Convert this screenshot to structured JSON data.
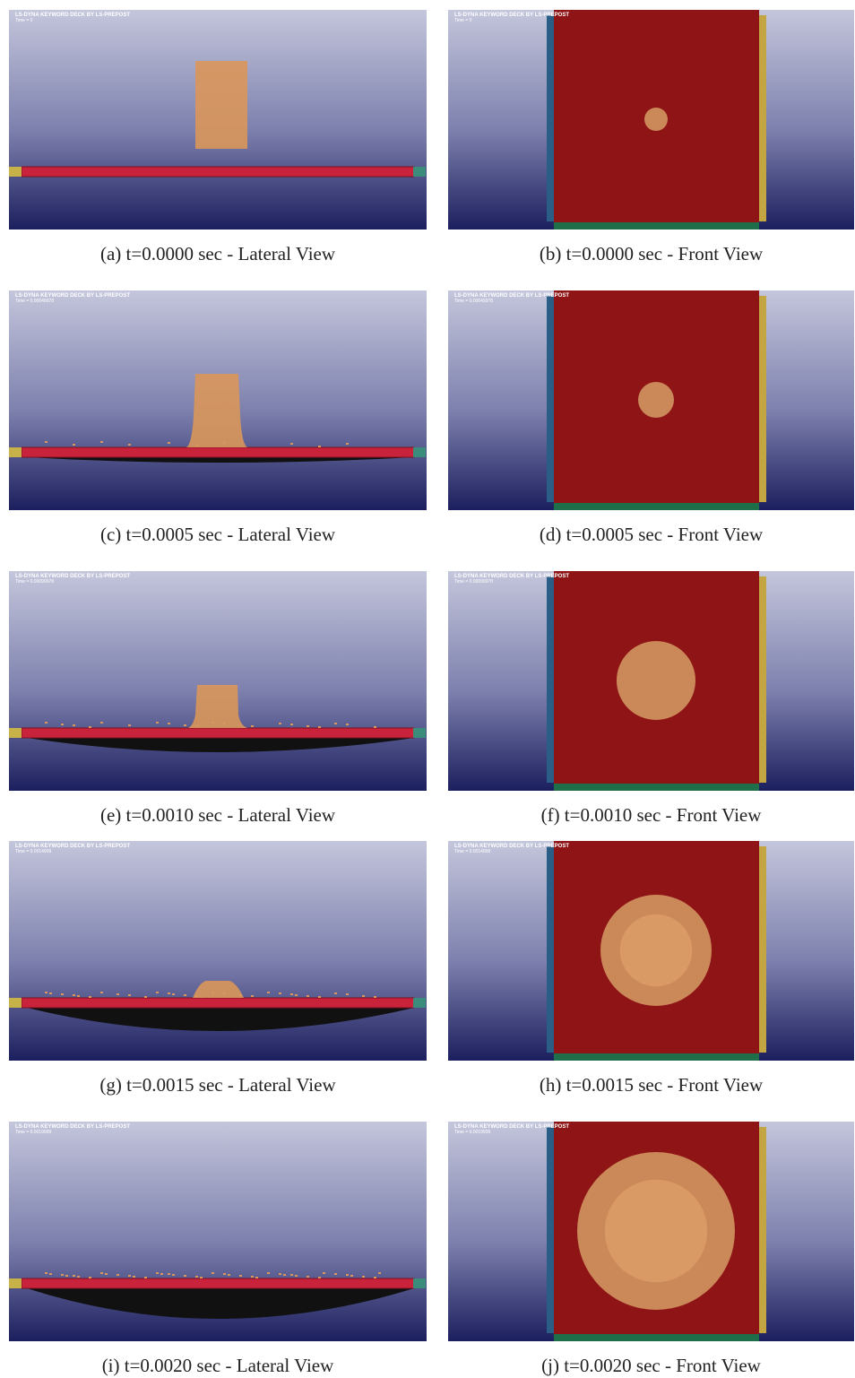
{
  "panels": [
    {
      "header": "LS-DYNA KEYWORD DECK BY LS-PREPOST",
      "time": "Time =       0",
      "caption": "(a) t=0.0000 sec - Lateral View"
    },
    {
      "header": "LS-DYNA KEYWORD DECK BY LS-PREPOST",
      "time": "Time =       0",
      "caption": "(b) t=0.0000 sec - Front View"
    },
    {
      "header": "LS-DYNA KEYWORD DECK BY LS-PREPOST",
      "time": "Time = 0.00049978",
      "caption": "(c) t=0.0005 sec - Lateral View"
    },
    {
      "header": "LS-DYNA KEYWORD DECK BY LS-PREPOST",
      "time": "Time = 0.00049978",
      "caption": "(d) t=0.0005 sec - Front View"
    },
    {
      "header": "LS-DYNA KEYWORD DECK BY LS-PREPOST",
      "time": "Time = 0.00099978",
      "caption": "(e) t=0.0010 sec - Lateral View"
    },
    {
      "header": "LS-DYNA KEYWORD DECK BY LS-PREPOST",
      "time": "Time = 0.00099978",
      "caption": "(f) t=0.0010 sec - Front View"
    },
    {
      "header": "LS-DYNA KEYWORD DECK BY LS-PREPOST",
      "time": "Time = 0.0014999",
      "caption": "(g) t=0.0015 sec - Lateral View"
    },
    {
      "header": "LS-DYNA KEYWORD DECK BY LS-PREPOST",
      "time": "Time = 0.0014999",
      "caption": "(h) t=0.0015 sec - Front View"
    },
    {
      "header": "LS-DYNA KEYWORD DECK BY LS-PREPOST",
      "time": "Time = 0.0019999",
      "caption": "(i) t=0.0020 sec - Lateral View"
    },
    {
      "header": "LS-DYNA KEYWORD DECK BY LS-PREPOST",
      "time": "Time = 0.0019999",
      "caption": "(j) t=0.0020 sec - Front View"
    }
  ]
}
